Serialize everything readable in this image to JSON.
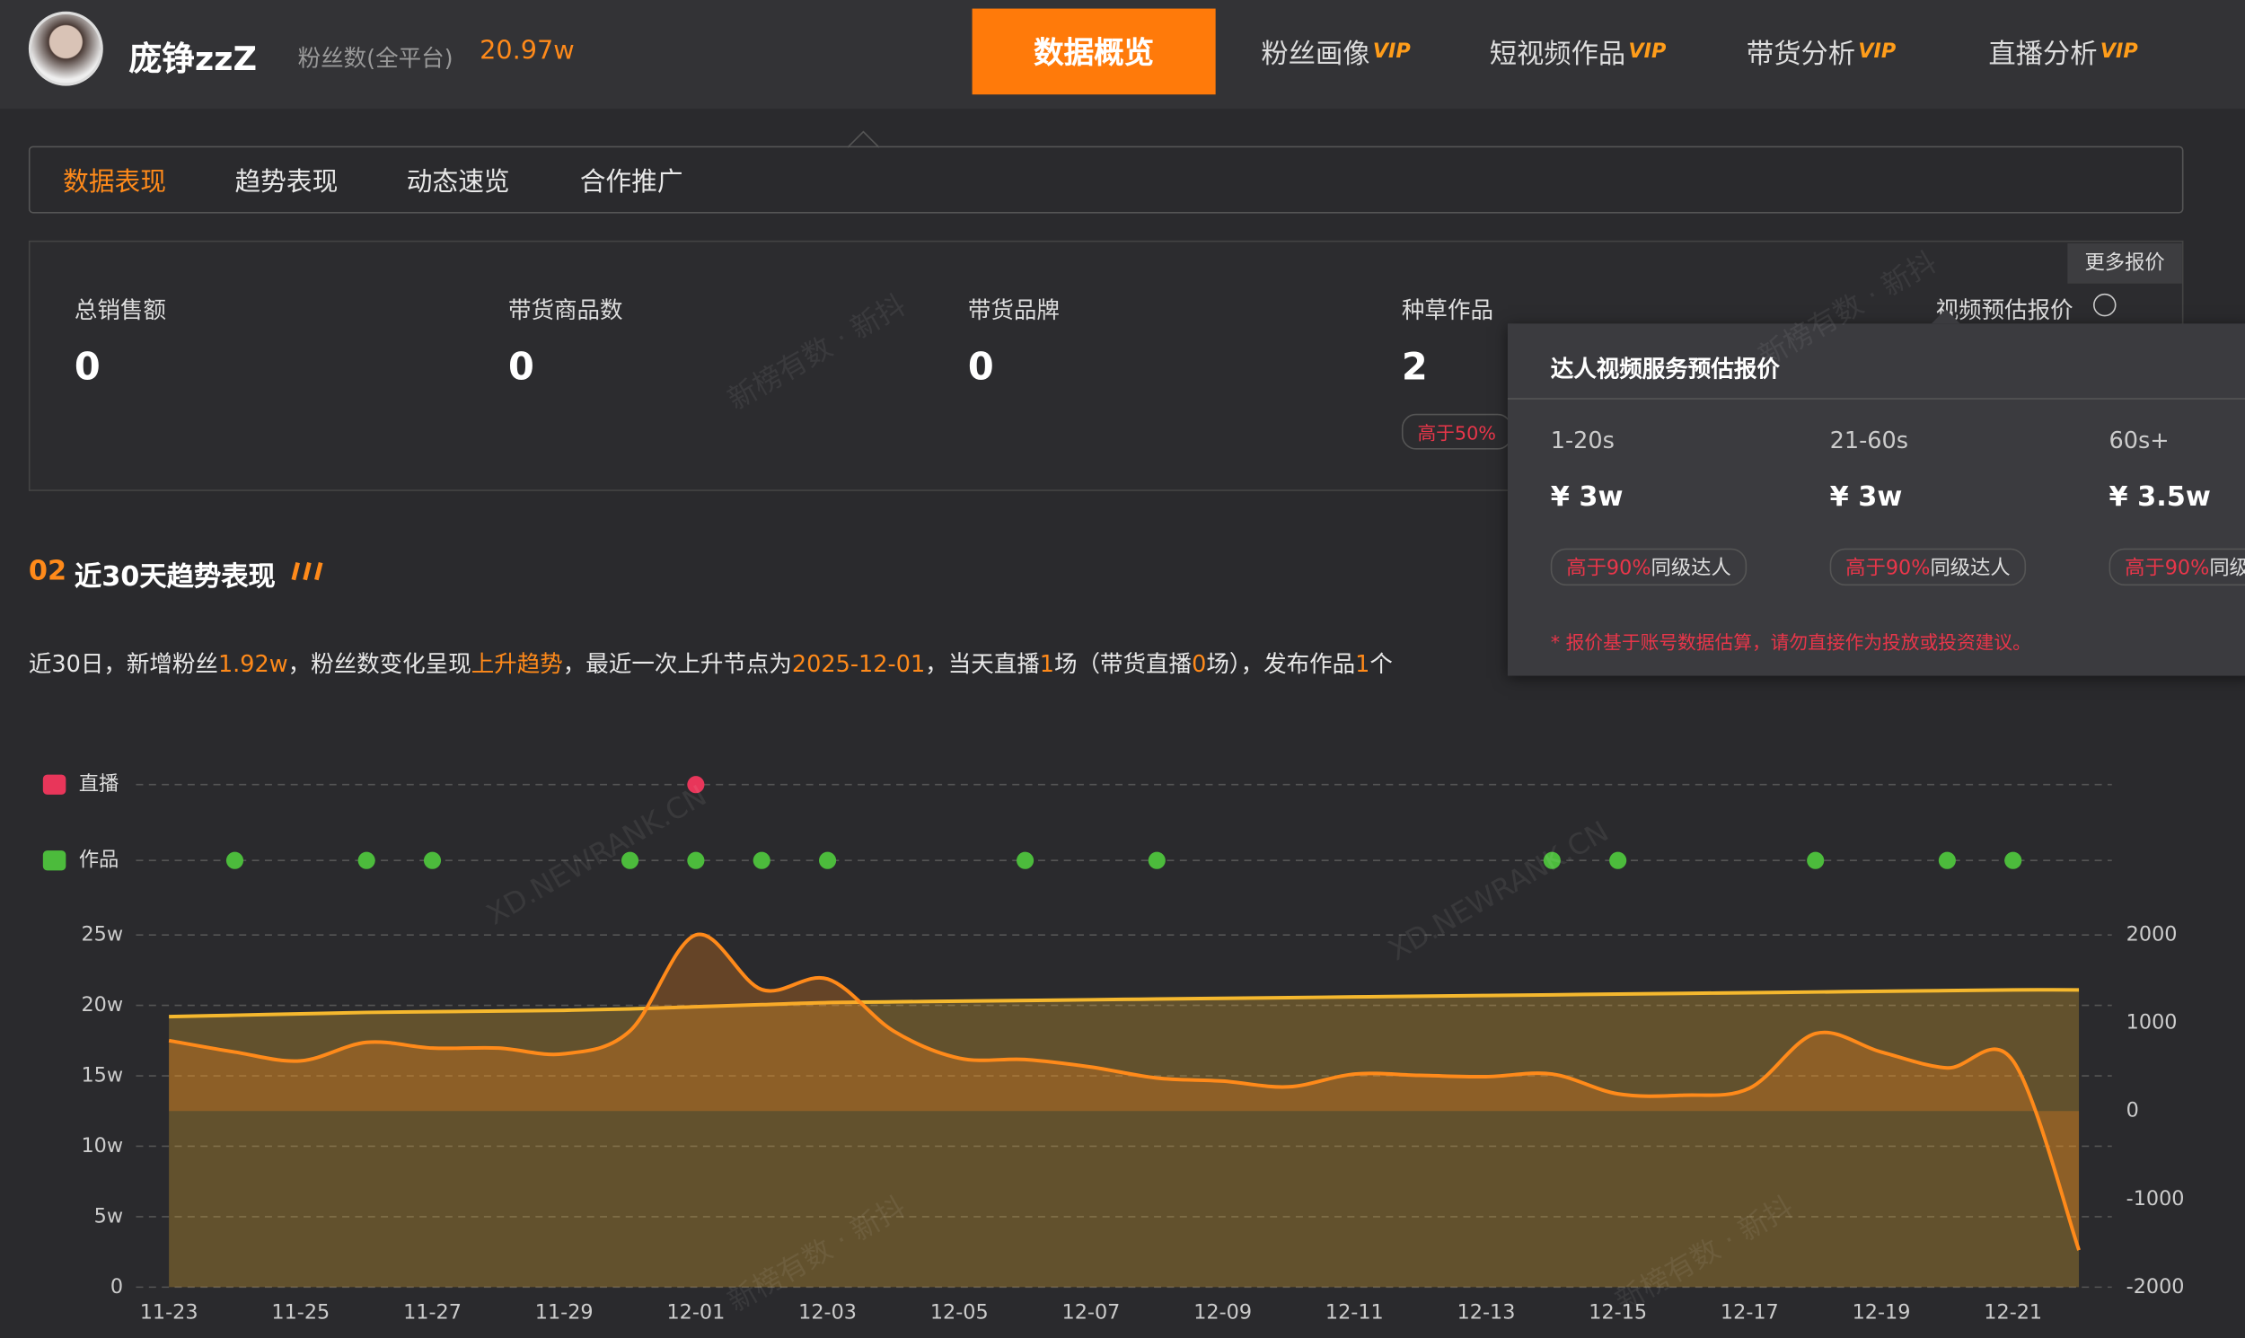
{
  "header": {
    "name": "庞铮zzZ",
    "fans_label": "粉丝数(全平台)",
    "fans_value": "20.97w",
    "active_nav": 0,
    "nav": [
      {
        "label": "数据概览"
      },
      {
        "label": "粉丝画像",
        "badge": "VIP"
      },
      {
        "label": "短视频作品",
        "badge": "VIP"
      },
      {
        "label": "带货分析",
        "badge": "VIP"
      },
      {
        "label": "直播分析",
        "badge": "VIP"
      }
    ]
  },
  "tabs": {
    "items": [
      "数据表现",
      "趋势表现",
      "动态速览",
      "合作推广"
    ],
    "active": 0
  },
  "stats": {
    "more_button": "更多报价",
    "items": [
      {
        "label": "总销售额",
        "value": 0
      },
      {
        "label": "带货商品数",
        "value": 0
      },
      {
        "label": "带货品牌",
        "value": 0
      },
      {
        "label": "种草作品",
        "value": 2,
        "badge": "高于50%"
      },
      {
        "label": "视频预估报价"
      }
    ]
  },
  "price_popover": {
    "title": "达人视频服务预估报价",
    "note": "* 报价基于账号数据估算，请勿直接作为投放或投资建议。",
    "columns": [
      {
        "duration": "1-20s",
        "price": "¥ 3w",
        "badge_high": "高于90%",
        "badge_text": "同级达人"
      },
      {
        "duration": "21-60s",
        "price": "¥ 3w",
        "badge_high": "高于90%",
        "badge_text": "同级达人"
      },
      {
        "duration": "60s+",
        "price": "¥ 3.5w",
        "badge_high": "高于90%",
        "badge_text": "同级达人"
      }
    ]
  },
  "section": {
    "number": "02",
    "title": "近30天趋势表现"
  },
  "summary": {
    "segments": [
      "近30日，新增粉丝",
      "1.92w",
      "，粉丝数变化呈现",
      "上升趋势",
      "，最近一次上升节点为",
      "2025-12-01",
      "，当天直播",
      "1",
      "场（带货直播",
      "0",
      "场），发布作品",
      "1",
      "个"
    ]
  },
  "watermarks": [
    "新榜有数 · 新抖",
    "XD.NEWRANK.CN"
  ],
  "trend_chart": {
    "type": "line",
    "grid": true,
    "categories": [
      "11-23",
      null,
      "11-25",
      null,
      "11-27",
      null,
      "11-29",
      null,
      "12-01",
      null,
      "12-03",
      null,
      "12-05",
      null,
      "12-07",
      null,
      "12-09",
      null,
      "12-11",
      null,
      "12-13",
      null,
      "12-15",
      null,
      "12-17",
      null,
      "12-19",
      null,
      "12-21",
      null
    ],
    "ylim": [
      0,
      250000
    ],
    "yticks": [
      0,
      {
        "value": 50000,
        "label": "5w"
      },
      {
        "value": 100000,
        "label": "10w"
      },
      {
        "value": 150000,
        "label": "15w"
      },
      {
        "value": 200000,
        "label": "20w"
      },
      {
        "value": 250000,
        "label": "25w"
      }
    ],
    "y2lim": [
      -2000,
      2000
    ],
    "y2ticks": [
      -2000,
      -1000,
      0,
      1000,
      2000
    ],
    "series": [
      {
        "color": "#f5b82e",
        "values": [
          192000,
          193000,
          194000,
          195000,
          195500,
          196000,
          196500,
          197500,
          199000,
          200500,
          202000,
          202500,
          203000,
          203500,
          204000,
          204500,
          205000,
          205500,
          206000,
          206500,
          207000,
          207500,
          208000,
          208500,
          209000,
          209500,
          210000,
          210500,
          211000,
          211000
        ]
      },
      {
        "color": "#ff8a1a",
        "axis": "y2",
        "values": [
          800,
          670,
          570,
          780,
          715,
          715,
          650,
          910,
          2000,
          1380,
          1500,
          910,
          600,
          585,
          500,
          375,
          340,
          275,
          420,
          405,
          390,
          420,
          195,
          180,
          260,
          880,
          670,
          490,
          570,
          -1580
        ]
      }
    ],
    "events": [
      {
        "label": "直播",
        "color": "#e8365a",
        "counts": [
          0,
          0,
          0,
          0,
          0,
          0,
          0,
          0,
          1,
          0,
          0,
          0,
          0,
          0,
          0,
          0,
          0,
          0,
          0,
          0,
          0,
          0,
          0,
          0,
          0,
          0,
          0,
          0,
          0,
          0
        ]
      },
      {
        "label": "作品",
        "color": "#4cbb3c",
        "counts": [
          0,
          1,
          0,
          1,
          1,
          0,
          0,
          1,
          1,
          1,
          1,
          0,
          0,
          1,
          0,
          1,
          0,
          0,
          0,
          0,
          0,
          1,
          1,
          0,
          0,
          1,
          0,
          1,
          1,
          0
        ]
      }
    ]
  }
}
